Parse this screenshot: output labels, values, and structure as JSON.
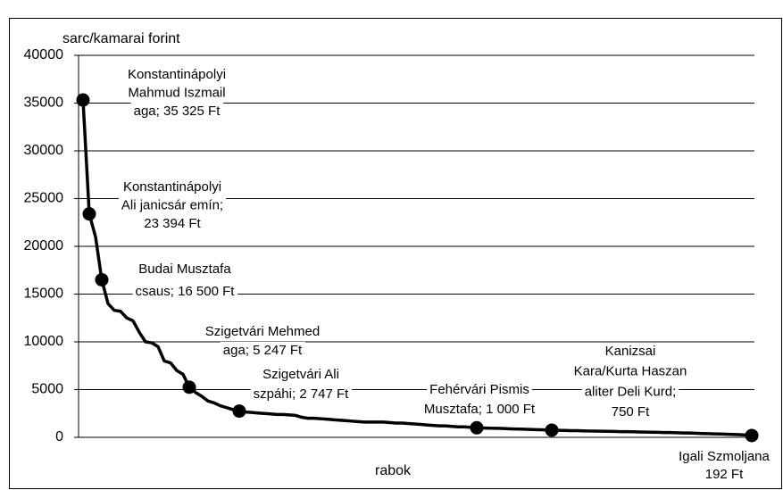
{
  "chart_data": {
    "type": "line",
    "ylabel": "sarc/kamarai forint",
    "xlabel": "rabok",
    "ylim": [
      0,
      40000
    ],
    "yticks": [
      0,
      5000,
      10000,
      15000,
      20000,
      25000,
      30000,
      35000,
      40000
    ],
    "grid": true,
    "series": [
      {
        "color": "#000000",
        "values": [
          35325,
          23394,
          21000,
          16500,
          14000,
          13300,
          13200,
          12500,
          12200,
          11000,
          10000,
          9900,
          9500,
          8000,
          7800,
          7000,
          6600,
          5247,
          4700,
          4300,
          3800,
          3600,
          3300,
          3100,
          2900,
          2747,
          2650,
          2600,
          2550,
          2500,
          2450,
          2400,
          2400,
          2350,
          2300,
          2100,
          2000,
          2000,
          1950,
          1900,
          1850,
          1800,
          1750,
          1700,
          1650,
          1600,
          1600,
          1600,
          1600,
          1550,
          1500,
          1500,
          1450,
          1400,
          1350,
          1300,
          1250,
          1200,
          1200,
          1150,
          1100,
          1100,
          1050,
          1000,
          980,
          960,
          950,
          930,
          900,
          880,
          860,
          840,
          820,
          800,
          780,
          750,
          740,
          720,
          700,
          700,
          680,
          660,
          650,
          640,
          630,
          620,
          600,
          600,
          580,
          560,
          550,
          540,
          520,
          500,
          500,
          480,
          460,
          450,
          430,
          400,
          380,
          360,
          350,
          330,
          300,
          280,
          250,
          192
        ]
      }
    ],
    "annotations": [
      [
        "Konstantinápolyi",
        "Mahmud Iszmail",
        "aga; 35 325 Ft"
      ],
      [
        "Konstantinápolyi",
        "Ali janicsár emín;",
        "23 394 Ft"
      ],
      [
        "Budai Musztafa",
        "csaus; 16 500 Ft"
      ],
      [
        "Szigetvári Mehmed",
        "aga; 5 247 Ft"
      ],
      [
        "Szigetvári Ali",
        "szpáhi; 2  747 Ft"
      ],
      [
        "Fehérvári Pismis",
        "Musztafa; 1 000 Ft"
      ],
      [
        "Kanizsai",
        "Kara/Kurta Haszan",
        "aliter Deli Kurd;",
        "750 Ft"
      ],
      [
        "Igali Szmoljana",
        "192 Ft"
      ]
    ]
  }
}
